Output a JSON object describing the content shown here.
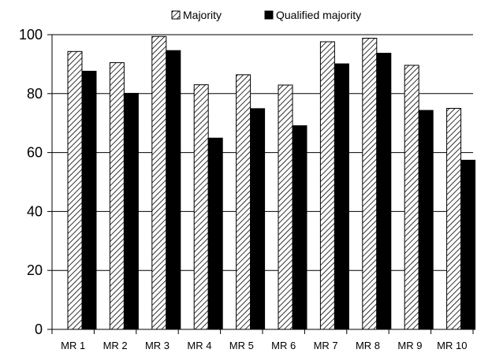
{
  "chart_data": {
    "type": "bar",
    "title": "",
    "xlabel": "",
    "ylabel": "",
    "ylim": [
      0,
      100
    ],
    "yticks": [
      0,
      20,
      40,
      60,
      80,
      100
    ],
    "grid": true,
    "legend_position": "top-center",
    "categories": [
      "MR 1",
      "MR 2",
      "MR 3",
      "MR 4",
      "MR 5",
      "MR 6",
      "MR 7",
      "MR 8",
      "MR 9",
      "MR 10"
    ],
    "series": [
      {
        "name": "Majority",
        "pattern": "diagonal-hatch",
        "color": "#000000",
        "values": [
          94.3,
          90.5,
          99.4,
          83.0,
          86.4,
          82.9,
          97.6,
          98.8,
          89.6,
          75.0
        ]
      },
      {
        "name": "Qualified majority",
        "pattern": "solid",
        "color": "#000000",
        "values": [
          87.6,
          80.1,
          94.6,
          64.9,
          74.9,
          69.1,
          90.1,
          93.7,
          74.3,
          57.4
        ]
      }
    ]
  }
}
